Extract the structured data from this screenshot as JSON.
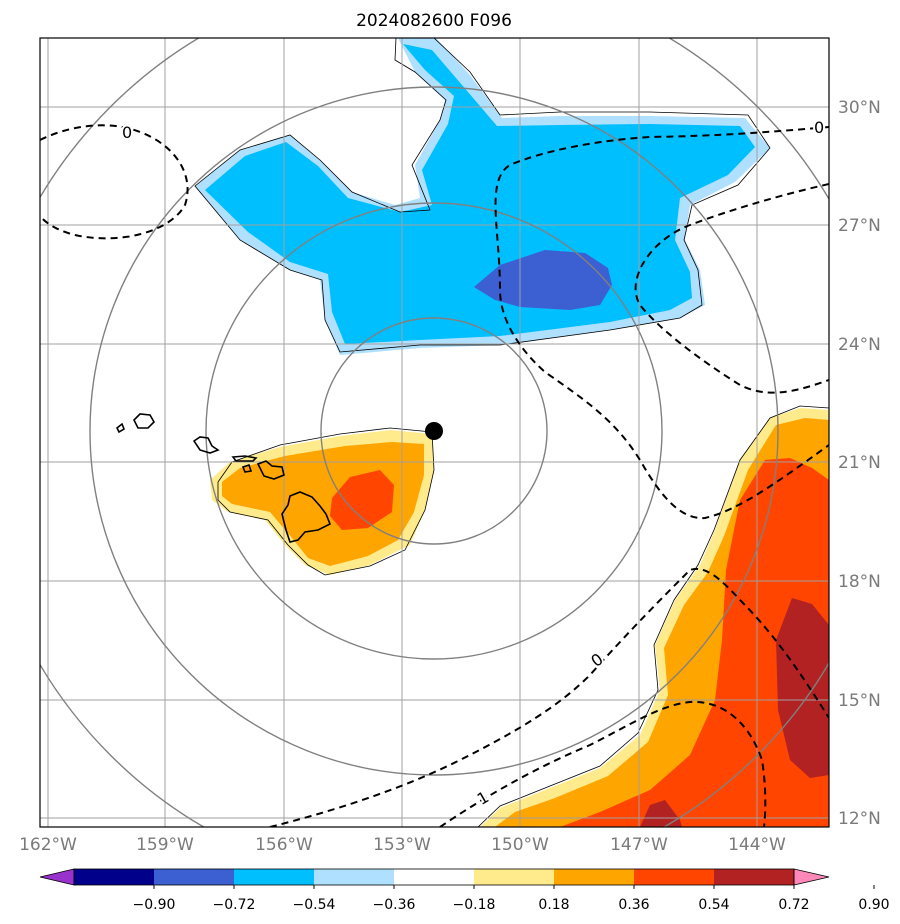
{
  "title": "2024082600 F096",
  "lon_labels": [
    "162°W",
    "159°W",
    "156°W",
    "153°W",
    "150°W",
    "147°W",
    "144°W"
  ],
  "lat_labels": [
    "30°N",
    "27°N",
    "24°N",
    "21°N",
    "18°N",
    "15°N",
    "12°N"
  ],
  "contour_labels": [
    "0",
    "0",
    "0",
    "1"
  ],
  "colorbar": {
    "tick_labels": [
      "−0.90",
      "−0.72",
      "−0.54",
      "−0.36",
      "−0.18",
      "0.18",
      "0.36",
      "0.54",
      "0.72",
      "0.90"
    ],
    "colors": [
      "#9932cc",
      "#00008b",
      "#3c5fd2",
      "#00bfff",
      "#b0e0ff",
      "#ffffff",
      "#ffeb8c",
      "#ffa500",
      "#ff4500",
      "#b22222",
      "#ff88b8"
    ]
  },
  "fill_colors": {
    "neg_light": "#b0e0ff",
    "neg_mid": "#00bfff",
    "neg_dark": "#3c5fd2",
    "pos_light": "#ffeb8c",
    "pos_mid": "#ffa500",
    "pos_dark": "#ff4500",
    "pos_max": "#b22222"
  },
  "storm_center": {
    "lon": -152.0,
    "lat": 21.7
  }
}
